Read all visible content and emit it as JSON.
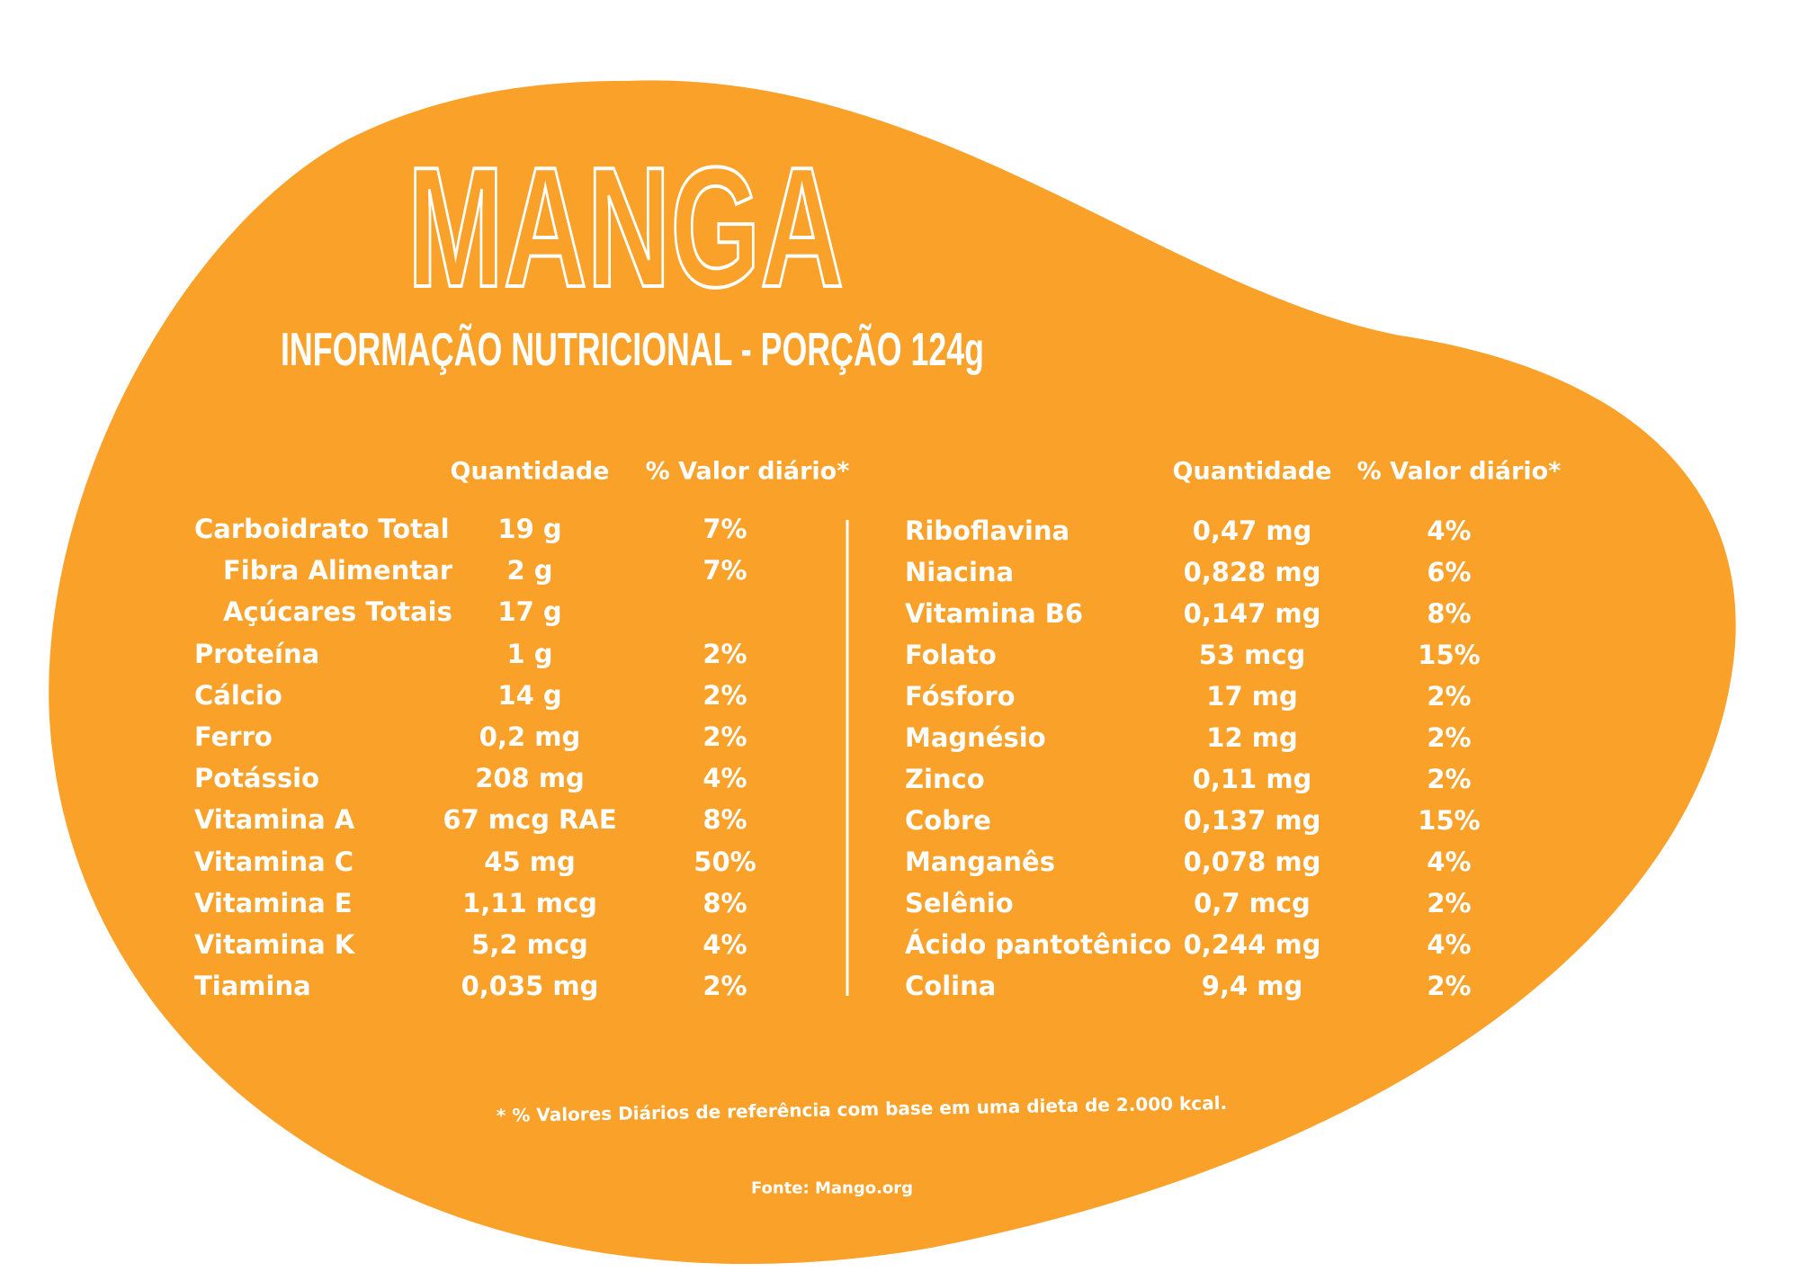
{
  "title": "MANGA",
  "subtitle": "INFORMAÇÃO NUTRICIONAL - PORÇÃO 124g",
  "left_table": {
    "headers": {
      "quantity": "Quantidade",
      "daily_value": "% Valor diário*"
    },
    "rows": [
      {
        "name": "Carboidrato Total",
        "quantity": "19 g",
        "daily_value": "7%"
      },
      {
        "name": "Fibra Alimentar",
        "quantity": "2 g",
        "daily_value": "7%"
      },
      {
        "name": "Açúcares Totais",
        "quantity": "17 g"
      },
      {
        "name": "Proteína",
        "quantity": "1 g",
        "daily_value": "2%"
      },
      {
        "name": "Cálcio",
        "quantity": "14 g",
        "daily_value": "2%"
      },
      {
        "name": "Ferro",
        "quantity": "0,2 mg",
        "daily_value": "2%"
      },
      {
        "name": "Potássio",
        "quantity": "208 mg",
        "daily_value": "4%"
      },
      {
        "name": "Vitamina A",
        "quantity": "67 mcg RAE",
        "daily_value": "8%"
      },
      {
        "name": "Vitamina C",
        "quantity": "45 mg",
        "daily_value": "50%"
      },
      {
        "name": "Vitamina E",
        "quantity": "1,11 mcg",
        "daily_value": "8%"
      },
      {
        "name": "Vitamina K",
        "quantity": "5,2 mcg",
        "daily_value": "4%"
      },
      {
        "name": "Tiamina",
        "quantity": "0,035 mg",
        "daily_value": "2%"
      }
    ]
  },
  "right_table": {
    "headers": {
      "quantity": "Quantidade",
      "daily_value": "% Valor diário*"
    },
    "rows": [
      {
        "name": "Riboflavina",
        "quantity": "0,47 mg",
        "daily_value": "4%"
      },
      {
        "name": "Niacina",
        "quantity": "0,828 mg",
        "daily_value": "6%"
      },
      {
        "name": "Vitamina B6",
        "quantity": "0,147 mg",
        "daily_value": "8%"
      },
      {
        "name": "Folato",
        "quantity": "53 mcg",
        "daily_value": "15%"
      },
      {
        "name": "Fósforo",
        "quantity": "17 mg",
        "daily_value": "2%"
      },
      {
        "name": "Magnésio",
        "quantity": "12 mg",
        "daily_value": "2%"
      },
      {
        "name": "Zinco",
        "quantity": "0,11 mg",
        "daily_value": "2%"
      },
      {
        "name": "Cobre",
        "quantity": "0,137 mg",
        "daily_value": "15%"
      },
      {
        "name": "Manganês",
        "quantity": "0,078 mg",
        "daily_value": "4%"
      },
      {
        "name": "Selênio",
        "quantity": "0,7 mcg",
        "daily_value": "2%"
      },
      {
        "name": "Ácido pantotênico",
        "quantity": "0,244 mg",
        "daily_value": "4%"
      },
      {
        "name": "Colina",
        "quantity": "9,4 mg",
        "daily_value": "2%"
      }
    ]
  },
  "footnote": "* % Valores Diários de referência com base em uma dieta de 2.000 kcal.",
  "source": "Fonte: Mango.org"
}
